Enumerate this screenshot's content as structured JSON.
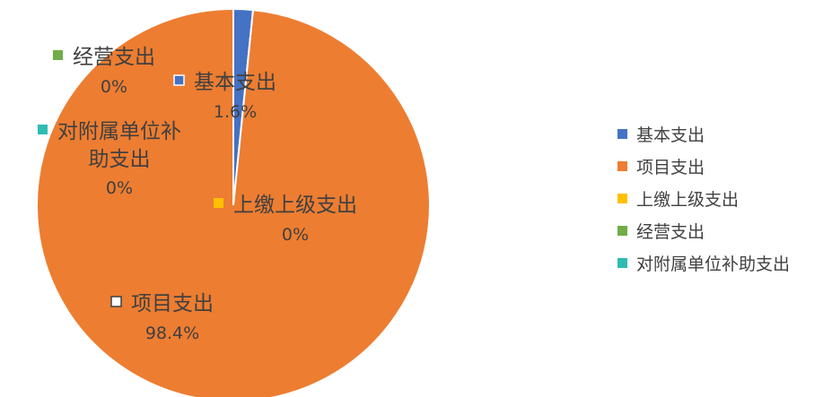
{
  "chart_data": {
    "type": "pie",
    "title": "",
    "legend_position": "right",
    "slices": [
      {
        "name": "基本支出",
        "value": 1.6,
        "label": "1.6%",
        "color": "#4472C4"
      },
      {
        "name": "项目支出",
        "value": 98.4,
        "label": "98.4%",
        "color": "#ED7D31"
      },
      {
        "name": "上缴上级支出",
        "value": 0,
        "label": "0%",
        "color": "#FFC000"
      },
      {
        "name": "经营支出",
        "value": 0,
        "label": "0%",
        "color": "#70AD47"
      },
      {
        "name": "对附属单位补助支出",
        "value": 0,
        "label": "0%",
        "color": "#2EBCB3"
      }
    ]
  }
}
